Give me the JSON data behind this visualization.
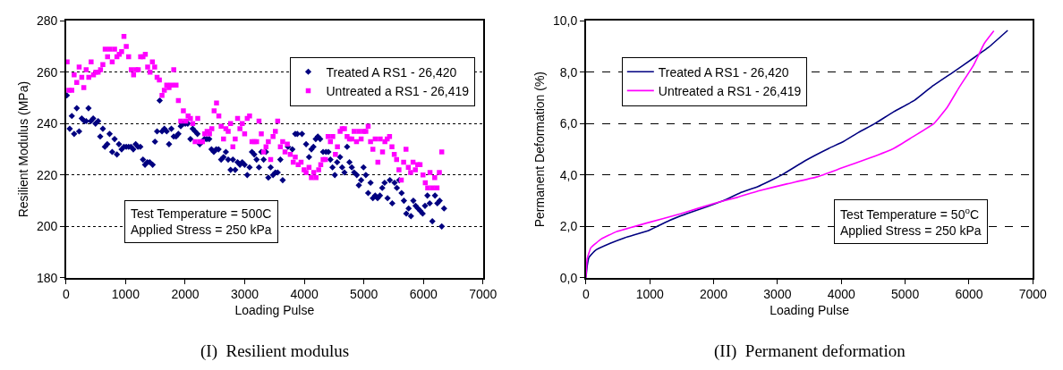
{
  "chart_data": [
    {
      "type": "scatter",
      "title": "(I)  Resilient modulus",
      "xlabel": "Loading Pulse",
      "ylabel": "Resilient Modulus (MPa)",
      "xlim": [
        0,
        7000
      ],
      "xticks": [
        0,
        1000,
        2000,
        3000,
        4000,
        5000,
        6000,
        7000
      ],
      "ylim": [
        180,
        280
      ],
      "yticks": [
        180,
        200,
        220,
        240,
        260,
        280
      ],
      "grid": "y",
      "legend": "top right",
      "annotations": [
        "Test Temperature = 500C\nApplied Stress = 250 kPa"
      ],
      "series": [
        {
          "name": "Treated A RS1 - 26,420",
          "color": "#000080",
          "marker": "diamond",
          "x": [
            13,
            62,
            97,
            136,
            180,
            220,
            264,
            308,
            338,
            377,
            416,
            456,
            495,
            539,
            574,
            618,
            652,
            692,
            731,
            775,
            815,
            854,
            888,
            933,
            972,
            1011,
            1051,
            1090,
            1129,
            1169,
            1208,
            1247,
            1292,
            1326,
            1365,
            1405,
            1454,
            1493,
            1528,
            1572,
            1611,
            1650,
            1690,
            1729,
            1768,
            1808,
            1847,
            1886,
            1926,
            1965,
            2004,
            2044,
            2088,
            2127,
            2167,
            2206,
            2245,
            2285,
            2324,
            2363,
            2403,
            2442,
            2481,
            2521,
            2560,
            2604,
            2644,
            2683,
            2722,
            2762,
            2801,
            2840,
            2880,
            2919,
            2958,
            2998,
            3042,
            3081,
            3121,
            3160,
            3199,
            3239,
            3278,
            3317,
            3357,
            3396,
            3435,
            3475,
            3514,
            3553,
            3598,
            3637,
            3725,
            3799,
            3848,
            3883,
            3961,
            4030,
            4079,
            4119,
            4153,
            4192,
            4227,
            4266,
            4315,
            4364,
            4404,
            4438,
            4473,
            4512,
            4551,
            4600,
            4635,
            4674,
            4718,
            4758,
            4797,
            4836,
            4881,
            4915,
            4954,
            4994,
            5033,
            5072,
            5112,
            5151,
            5190,
            5230,
            5269,
            5308,
            5348,
            5397,
            5436,
            5476,
            5515,
            5554,
            5594,
            5633,
            5672,
            5712,
            5751,
            5790,
            5830,
            5869,
            5908,
            5948,
            5987,
            6026,
            6066,
            6105,
            6149,
            6194,
            6233,
            6272,
            6307,
            6346
          ],
          "values": [
            251,
            238,
            243,
            236,
            246,
            237,
            242,
            241,
            241,
            246,
            241,
            242,
            240,
            241,
            235,
            238,
            231,
            232,
            236,
            229,
            234,
            228,
            232,
            230,
            231,
            231,
            231,
            231,
            230,
            232,
            231,
            231,
            226,
            224,
            225,
            225,
            224,
            233,
            237,
            249,
            237,
            238,
            237,
            232,
            238,
            235,
            235,
            236,
            239,
            240,
            240,
            240,
            234,
            238,
            237,
            236,
            232,
            233,
            234,
            234,
            234,
            230,
            229,
            230,
            230,
            226,
            227,
            229,
            226,
            222,
            226,
            222,
            225,
            224,
            225,
            224,
            220,
            223,
            229,
            228,
            226,
            223,
            229,
            226,
            229,
            219,
            223,
            220,
            221,
            221,
            226,
            218,
            231,
            230,
            236,
            236,
            236,
            232,
            227,
            230,
            231,
            234,
            235,
            234,
            229,
            229,
            229,
            226,
            223,
            220,
            225,
            227,
            223,
            221,
            231,
            225,
            223,
            221,
            220,
            216,
            218,
            223,
            220,
            213,
            217,
            211,
            212,
            211,
            212,
            215,
            217,
            211,
            218,
            209,
            217,
            215,
            218,
            213,
            210,
            205,
            207,
            204,
            210,
            208,
            207,
            206,
            205,
            208,
            212,
            209,
            202,
            212,
            209,
            210,
            200,
            207
          ]
        },
        {
          "name": "Untreated a RS1 - 26,419",
          "color": "#ff00ff",
          "marker": "square",
          "x": [
            18,
            48,
            97,
            136,
            180,
            220,
            264,
            298,
            338,
            382,
            421,
            461,
            500,
            539,
            579,
            618,
            657,
            697,
            736,
            775,
            815,
            854,
            893,
            933,
            972,
            1011,
            1051,
            1095,
            1134,
            1173,
            1213,
            1252,
            1292,
            1331,
            1370,
            1410,
            1449,
            1488,
            1528,
            1567,
            1611,
            1650,
            1690,
            1729,
            1768,
            1808,
            1847,
            1886,
            1926,
            1970,
            2009,
            2049,
            2088,
            2127,
            2167,
            2211,
            2250,
            2290,
            2329,
            2368,
            2408,
            2447,
            2486,
            2526,
            2565,
            2604,
            2644,
            2683,
            2722,
            2762,
            2801,
            2840,
            2880,
            2919,
            2958,
            2998,
            3042,
            3081,
            3121,
            3160,
            3199,
            3239,
            3278,
            3317,
            3357,
            3396,
            3435,
            3475,
            3514,
            3553,
            3598,
            3637,
            3676,
            3715,
            3764,
            3814,
            3848,
            3897,
            3946,
            3996,
            4030,
            4079,
            4119,
            4158,
            4197,
            4241,
            4276,
            4315,
            4355,
            4399,
            4438,
            4478,
            4522,
            4556,
            4601,
            4635,
            4674,
            4718,
            4758,
            4797,
            4836,
            4876,
            4915,
            4954,
            4994,
            5033,
            5072,
            5112,
            5151,
            5190,
            5235,
            5274,
            5313,
            5353,
            5392,
            5431,
            5471,
            5510,
            5549,
            5589,
            5628,
            5667,
            5707,
            5746,
            5785,
            5825,
            5864,
            5903,
            5943,
            5992,
            6031,
            6071,
            6110,
            6149,
            6189,
            6228,
            6267,
            6307
          ],
          "values": [
            264,
            253,
            253,
            259,
            256,
            262,
            258,
            254,
            261,
            258,
            264,
            259,
            260,
            260,
            261,
            263,
            269,
            266,
            269,
            264,
            269,
            266,
            267,
            268,
            274,
            270,
            266,
            261,
            259,
            261,
            261,
            266,
            266,
            267,
            262,
            260,
            264,
            262,
            258,
            257,
            251,
            253,
            255,
            254,
            255,
            261,
            255,
            249,
            241,
            245,
            241,
            243,
            242,
            240,
            233,
            242,
            233,
            233,
            236,
            237,
            236,
            238,
            245,
            248,
            243,
            239,
            234,
            238,
            237,
            240,
            231,
            234,
            242,
            238,
            240,
            236,
            242,
            243,
            233,
            233,
            233,
            241,
            236,
            229,
            231,
            233,
            226,
            235,
            237,
            241,
            231,
            233,
            229,
            232,
            228,
            225,
            227,
            224,
            225,
            222,
            221,
            223,
            219,
            221,
            219,
            222,
            224,
            226,
            226,
            235,
            233,
            235,
            228,
            231,
            237,
            238,
            238,
            235,
            234,
            234,
            237,
            233,
            237,
            234,
            237,
            237,
            239,
            233,
            230,
            234,
            225,
            234,
            229,
            233,
            234,
            235,
            231,
            228,
            226,
            222,
            218,
            225,
            230,
            223,
            221,
            225,
            222,
            224,
            224,
            220,
            217,
            215,
            221,
            215,
            219,
            215,
            221,
            229
          ]
        }
      ]
    },
    {
      "type": "line",
      "title": "(II)  Permanent deformation",
      "xlabel": "Loading Pulse",
      "ylabel": "Permanent Deformation (%)",
      "xlim": [
        0,
        7000
      ],
      "xticks": [
        0,
        1000,
        2000,
        3000,
        4000,
        5000,
        6000,
        7000
      ],
      "ylim": [
        0,
        10
      ],
      "yticks": [
        {
          "value": 0,
          "label": "0,0"
        },
        {
          "value": 2,
          "label": "2,0"
        },
        {
          "value": 4,
          "label": "4,0"
        },
        {
          "value": 6,
          "label": "6,0"
        },
        {
          "value": 8,
          "label": "8,0"
        },
        {
          "value": 10,
          "label": "10,0"
        }
      ],
      "grid": "y",
      "legend": "top left",
      "line_style": "solid",
      "annotations": [
        "Test Temperature = 50$^{o}$C\nApplied Stress = 250 kPa"
      ],
      "series": [
        {
          "name": "Treated A RS1 - 26,420",
          "color": "#000080",
          "x": [
            0,
            19,
            46,
            148,
            380,
            611,
            981,
            1306,
            1583,
            1907,
            2185,
            2417,
            2694,
            3065,
            3435,
            3806,
            4037,
            4269,
            4523,
            4824,
            5148,
            5426,
            5750,
            6074,
            6306,
            6606
          ],
          "values": [
            0,
            0.46,
            0.79,
            1.07,
            1.34,
            1.56,
            1.84,
            2.23,
            2.5,
            2.78,
            3.04,
            3.31,
            3.55,
            4.0,
            4.56,
            5.04,
            5.31,
            5.66,
            6.0,
            6.47,
            6.91,
            7.46,
            8.0,
            8.56,
            8.97,
            9.63
          ]
        },
        {
          "name": "Untreated a RS1 - 26,419",
          "color": "#ff00ff",
          "x": [
            0,
            19,
            79,
            241,
            472,
            935,
            1491,
            2000,
            2370,
            2694,
            3157,
            3620,
            3991,
            4454,
            4824,
            5148,
            5449,
            5657,
            5843,
            6074,
            6236,
            6389
          ],
          "values": [
            0,
            0.74,
            1.18,
            1.51,
            1.79,
            2.12,
            2.5,
            2.89,
            3.13,
            3.38,
            3.66,
            3.93,
            4.26,
            4.67,
            5.04,
            5.53,
            6.0,
            6.63,
            7.4,
            8.29,
            9.11,
            9.61
          ]
        }
      ]
    }
  ]
}
